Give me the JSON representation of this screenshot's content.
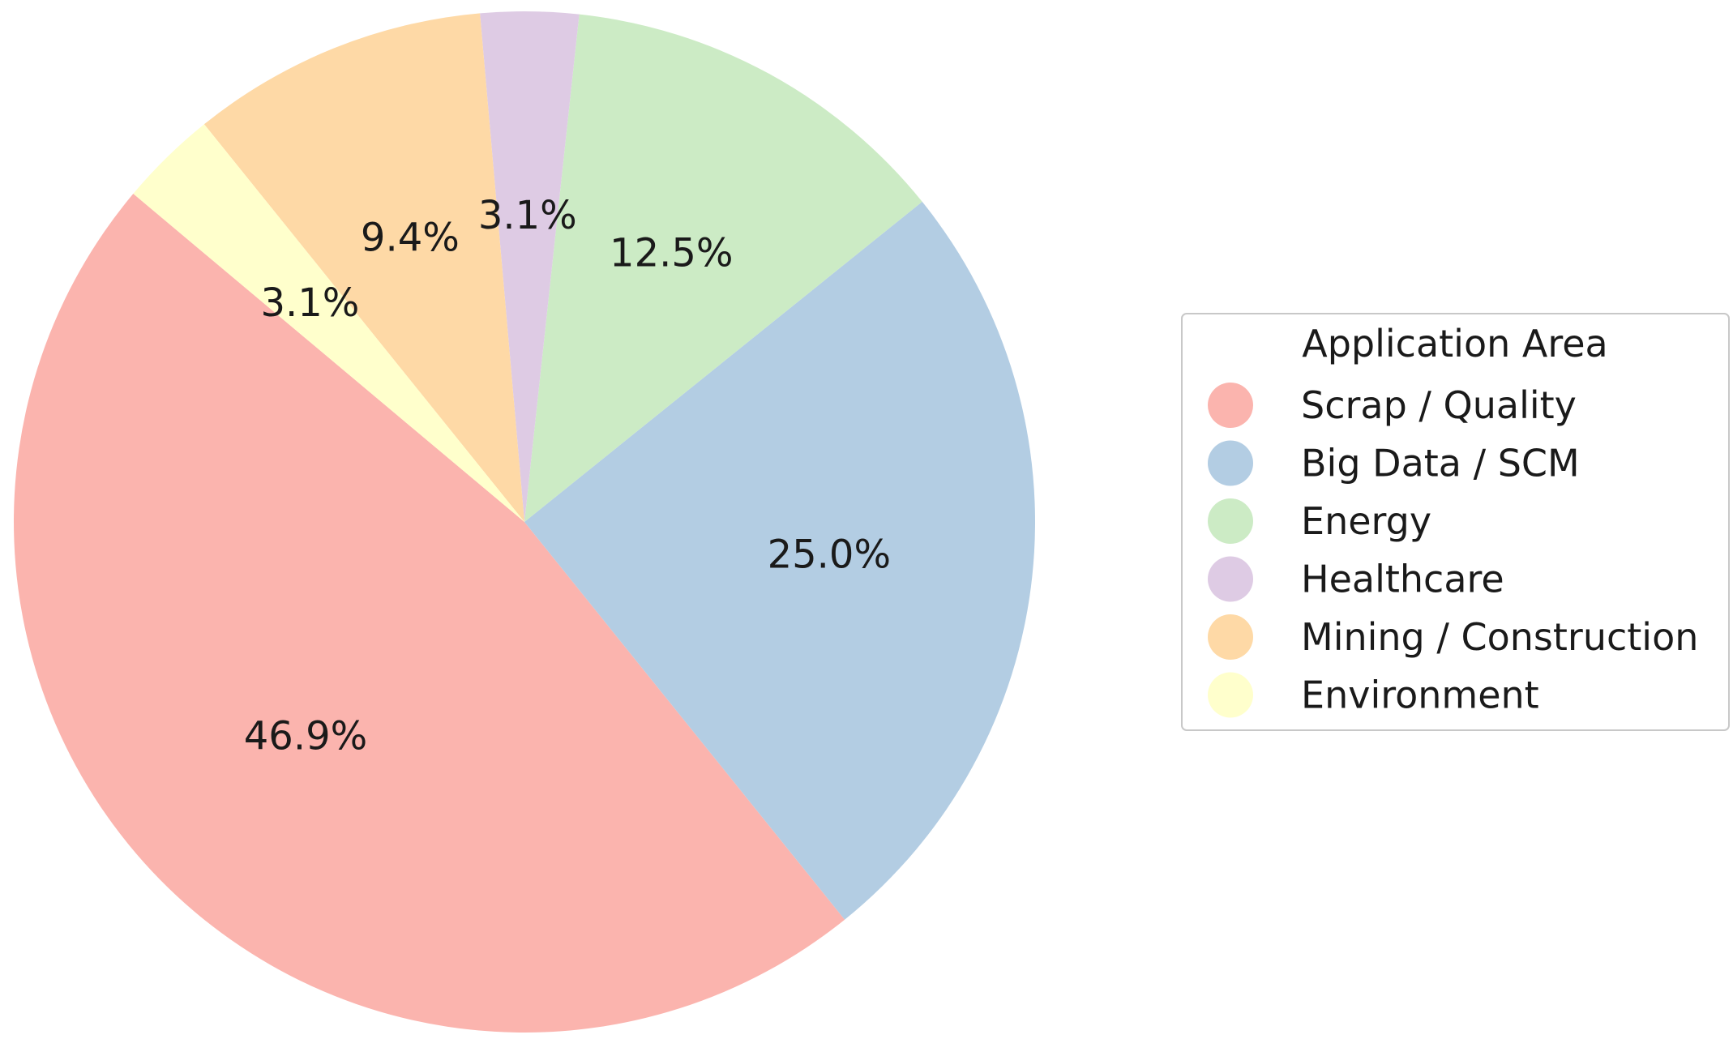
{
  "chart_data": {
    "type": "pie",
    "title": "",
    "legend": {
      "title": "Application Area",
      "placement": "right"
    },
    "slices": [
      {
        "label": "Scrap / Quality",
        "value": 46.9,
        "pct_label": "46.9%",
        "color": "#fbb4ae"
      },
      {
        "label": "Big Data / SCM",
        "value": 25.0,
        "pct_label": "25.0%",
        "color": "#b3cde3"
      },
      {
        "label": "Energy",
        "value": 12.5,
        "pct_label": "12.5%",
        "color": "#ccebc5"
      },
      {
        "label": "Healthcare",
        "value": 3.1,
        "pct_label": "3.1%",
        "color": "#decbe4"
      },
      {
        "label": "Mining / Construction",
        "value": 9.4,
        "pct_label": "9.4%",
        "color": "#fed9a6"
      },
      {
        "label": "Environment",
        "value": 3.1,
        "pct_label": "3.1%",
        "color": "#ffffcc"
      }
    ],
    "start_angle_deg": 140,
    "direction": "counterclockwise"
  }
}
